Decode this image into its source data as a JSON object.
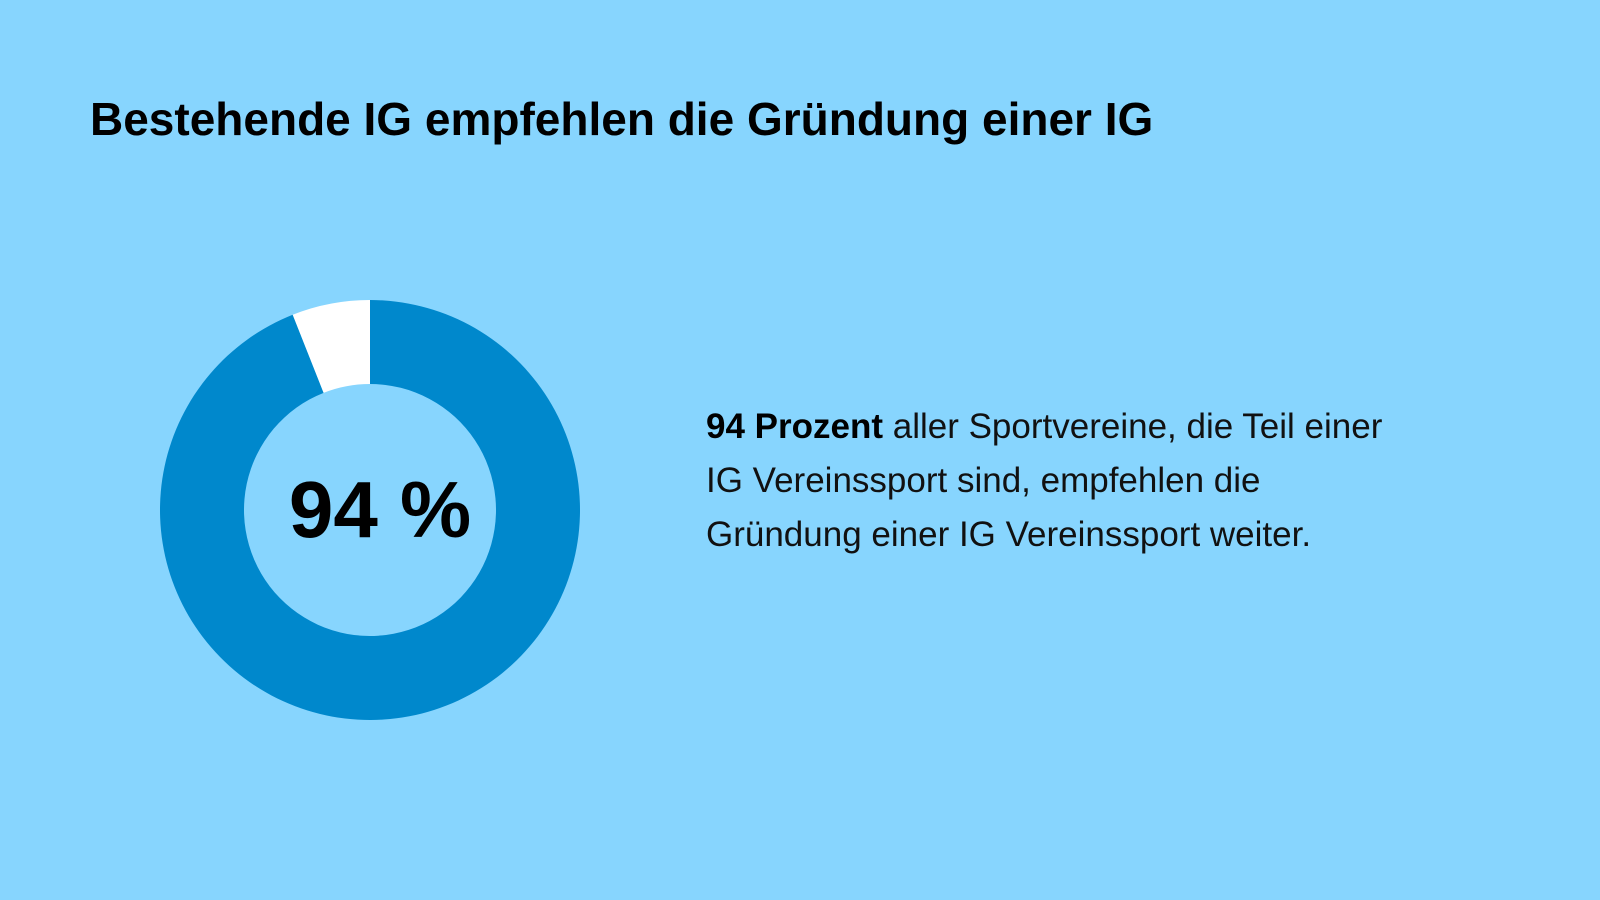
{
  "colors": {
    "background": "#87d5fe",
    "accent": "#0088cc",
    "remainder": "#ffffff",
    "text": "#000000"
  },
  "title": "Bestehende IG empfehlen die Gründung einer IG",
  "center_label": "94 %",
  "description": {
    "highlight": "94 Prozent",
    "text": " aller Sportvereine, die Teil einer IG Vereinssport sind, empfehlen die Gründung einer IG Vereinssport weiter."
  },
  "chart_data": {
    "type": "pie",
    "style": "donut",
    "categories": [
      "",
      ""
    ],
    "values": [
      94,
      6
    ],
    "unit": "%",
    "center_text": "94 %",
    "colors": [
      "#0088cc",
      "#ffffff"
    ]
  }
}
